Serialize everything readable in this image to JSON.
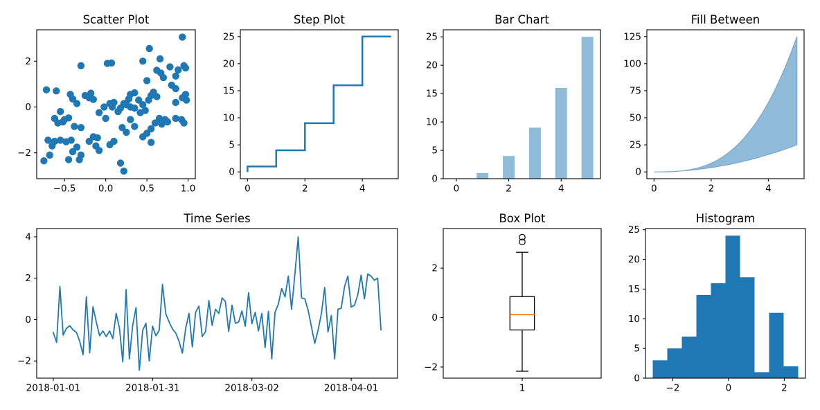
{
  "figure": {
    "background": "#ffffff",
    "text_color": "#000000",
    "spine_color": "#000000"
  },
  "colors": {
    "blue": "#1f77b4",
    "light_blue": "#8fbbd9",
    "area_edge": "#7aa6cc",
    "orange": "#ff7f0e",
    "black": "#000000"
  },
  "chart_data": [
    {
      "type": "scatter",
      "title": "Scatter Plot",
      "color": "#1f77b4",
      "marker_radius": 5.2,
      "xlim": [
        -0.8375,
        1.0875
      ],
      "ylim": [
        -3.13,
        3.37
      ],
      "xticks": {
        "values": [
          -0.5,
          0.0,
          0.5,
          1.0
        ],
        "labels": [
          "−0.5",
          "0.0",
          "0.5",
          "1.0"
        ]
      },
      "yticks": {
        "values": [
          -2,
          0,
          2
        ],
        "labels": [
          "−2",
          "0",
          "2"
        ]
      },
      "points": [
        [
          -0.3,
          1.8
        ],
        [
          0.02,
          1.9
        ],
        [
          0.07,
          1.92
        ],
        [
          0.93,
          3.05
        ],
        [
          0.53,
          2.55
        ],
        [
          0.45,
          2.0
        ],
        [
          0.66,
          2.1
        ],
        [
          0.78,
          1.75
        ],
        [
          0.95,
          1.8
        ],
        [
          0.88,
          1.62
        ],
        [
          0.97,
          1.7
        ],
        [
          0.62,
          1.6
        ],
        [
          0.67,
          1.48
        ],
        [
          0.85,
          1.35
        ],
        [
          0.7,
          1.28
        ],
        [
          0.5,
          1.15
        ],
        [
          0.8,
          0.95
        ],
        [
          -0.72,
          0.75
        ],
        [
          -0.6,
          0.7
        ],
        [
          0.85,
          0.8
        ],
        [
          -0.43,
          0.55
        ],
        [
          -0.25,
          0.5
        ],
        [
          -0.18,
          0.6
        ],
        [
          0.3,
          0.55
        ],
        [
          0.35,
          0.62
        ],
        [
          0.55,
          0.5
        ],
        [
          0.62,
          0.45
        ],
        [
          0.97,
          0.55
        ],
        [
          -0.4,
          0.35
        ],
        [
          -0.2,
          0.4
        ],
        [
          -0.15,
          0.33
        ],
        [
          0.28,
          0.35
        ],
        [
          0.4,
          0.3
        ],
        [
          0.52,
          0.3
        ],
        [
          0.93,
          0.4
        ],
        [
          0.98,
          0.3
        ],
        [
          -0.35,
          0.15
        ],
        [
          0.05,
          0.15
        ],
        [
          0.1,
          0.2
        ],
        [
          0.22,
          0.15
        ],
        [
          0.25,
          0.1
        ],
        [
          0.45,
          0.1
        ],
        [
          0.85,
          0.2
        ],
        [
          -0.02,
          0.0
        ],
        [
          0.08,
          0.0
        ],
        [
          0.18,
          -0.05
        ],
        [
          0.3,
          0.0
        ],
        [
          0.35,
          -0.05
        ],
        [
          -0.55,
          -0.2
        ],
        [
          -0.08,
          -0.25
        ],
        [
          0.15,
          -0.2
        ],
        [
          0.42,
          -0.25
        ],
        [
          0.48,
          -0.15
        ],
        [
          -0.62,
          -0.5
        ],
        [
          -0.5,
          -0.55
        ],
        [
          -0.45,
          -0.48
        ],
        [
          0.0,
          -0.5
        ],
        [
          0.3,
          -0.55
        ],
        [
          0.65,
          -0.5
        ],
        [
          0.72,
          -0.55
        ],
        [
          0.85,
          -0.5
        ],
        [
          0.92,
          -0.55
        ],
        [
          -0.58,
          -0.7
        ],
        [
          -0.52,
          -0.65
        ],
        [
          0.6,
          -0.7
        ],
        [
          0.68,
          -0.75
        ],
        [
          0.75,
          -0.65
        ],
        [
          0.95,
          -0.7
        ],
        [
          -0.38,
          -0.85
        ],
        [
          -0.3,
          -0.9
        ],
        [
          0.2,
          -0.9
        ],
        [
          0.55,
          -0.95
        ],
        [
          0.35,
          -0.85
        ],
        [
          0.25,
          -1.1
        ],
        [
          0.5,
          -1.15
        ],
        [
          -0.15,
          -1.3
        ],
        [
          -0.1,
          -1.35
        ],
        [
          0.45,
          -1.3
        ],
        [
          -0.7,
          -1.45
        ],
        [
          -0.62,
          -1.5
        ],
        [
          -0.55,
          -1.45
        ],
        [
          -0.48,
          -1.52
        ],
        [
          -0.42,
          -1.45
        ],
        [
          -0.2,
          -1.5
        ],
        [
          0.1,
          -1.5
        ],
        [
          0.55,
          -1.55
        ],
        [
          -0.65,
          -1.7
        ],
        [
          -0.35,
          -1.75
        ],
        [
          -0.12,
          -1.7
        ],
        [
          0.05,
          -1.65
        ],
        [
          -0.4,
          -1.95
        ],
        [
          -0.08,
          -1.9
        ],
        [
          -0.68,
          -2.1
        ],
        [
          -0.3,
          -2.1
        ],
        [
          -0.75,
          -2.35
        ],
        [
          -0.45,
          -2.3
        ],
        [
          -0.32,
          -2.3
        ],
        [
          0.18,
          -2.45
        ],
        [
          0.22,
          -2.8
        ],
        [
          0.58,
          0.65
        ]
      ]
    },
    {
      "type": "step",
      "title": "Step Plot",
      "color": "#1f77b4",
      "line_width": 2.5,
      "step_where": "pre",
      "x": [
        0,
        1,
        2,
        3,
        4,
        5
      ],
      "y": [
        0,
        1,
        4,
        9,
        16,
        25
      ],
      "xlim": [
        -0.25,
        5.25
      ],
      "ylim": [
        -1.25,
        26.25
      ],
      "xticks": {
        "values": [
          0,
          2,
          4
        ],
        "labels": [
          "0",
          "2",
          "4"
        ]
      },
      "yticks": {
        "values": [
          0,
          5,
          10,
          15,
          20,
          25
        ],
        "labels": [
          "0",
          "5",
          "10",
          "15",
          "20",
          "25"
        ]
      }
    },
    {
      "type": "bar",
      "title": "Bar Chart",
      "fill": "#8fbbd9",
      "bar_width": 0.45,
      "x": [
        0,
        1,
        2,
        3,
        4,
        5
      ],
      "values": [
        0,
        1,
        4,
        9,
        16,
        25
      ],
      "xlim": [
        -0.5,
        5.5
      ],
      "ylim": [
        0,
        26.25
      ],
      "xticks": {
        "values": [
          0,
          2,
          4
        ],
        "labels": [
          "0",
          "2",
          "4"
        ]
      },
      "yticks": {
        "values": [
          0,
          5,
          10,
          15,
          20,
          25
        ],
        "labels": [
          "0",
          "5",
          "10",
          "15",
          "20",
          "25"
        ]
      }
    },
    {
      "type": "area",
      "title": "Fill Between",
      "fill": "#8fbbd9",
      "edge": "#7aa6cc",
      "x": [
        0,
        0.2,
        0.4,
        0.6,
        0.8,
        1.0,
        1.2,
        1.4,
        1.6,
        1.8,
        2.0,
        2.2,
        2.4,
        2.6,
        2.8,
        3.0,
        3.2,
        3.4,
        3.6,
        3.8,
        4.0,
        4.2,
        4.4,
        4.6,
        4.8,
        5.0
      ],
      "y_lower": [
        0,
        0.04,
        0.16,
        0.36,
        0.64,
        1.0,
        1.44,
        1.96,
        2.56,
        3.24,
        4.0,
        4.84,
        5.76,
        6.76,
        7.84,
        9.0,
        10.24,
        11.56,
        12.96,
        14.44,
        16.0,
        17.64,
        19.36,
        21.16,
        23.04,
        25.0
      ],
      "y_upper": [
        0,
        0.008,
        0.064,
        0.216,
        0.512,
        1.0,
        1.728,
        2.744,
        4.096,
        5.832,
        8.0,
        10.648,
        13.824,
        17.576,
        21.952,
        27.0,
        32.768,
        39.304,
        46.656,
        54.872,
        64.0,
        74.088,
        85.184,
        97.336,
        110.592,
        125.0
      ],
      "xlim": [
        -0.25,
        5.25
      ],
      "ylim": [
        -6.25,
        131.25
      ],
      "xticks": {
        "values": [
          0,
          2,
          4
        ],
        "labels": [
          "0",
          "2",
          "4"
        ]
      },
      "yticks": {
        "values": [
          0,
          25,
          50,
          75,
          100,
          125
        ],
        "labels": [
          "0",
          "25",
          "50",
          "75",
          "100",
          "125"
        ]
      }
    },
    {
      "type": "line",
      "title": "Time Series",
      "color": "#1f77b4",
      "line_width": 1.8,
      "xlim": [
        -5,
        104
      ],
      "ylim": [
        -2.83,
        4.4
      ],
      "xticks": {
        "values": [
          0,
          30,
          60,
          90
        ],
        "labels": [
          "2018-01-01",
          "2018-01-31",
          "2018-03-02",
          "2018-04-01"
        ]
      },
      "yticks": {
        "values": [
          -2,
          0,
          2,
          4
        ],
        "labels": [
          "−2",
          "0",
          "2",
          "4"
        ]
      },
      "values": [
        -0.62,
        -1.1,
        1.6,
        -0.75,
        -0.42,
        -0.3,
        -0.5,
        -0.62,
        -1.05,
        -1.7,
        1.1,
        -1.6,
        0.62,
        -0.12,
        -0.78,
        -0.55,
        -0.82,
        -0.55,
        -0.92,
        0.3,
        -0.42,
        -2.05,
        1.45,
        -1.9,
        -0.28,
        0.58,
        -2.45,
        -0.52,
        -0.18,
        -2.0,
        -0.32,
        -0.78,
        -0.52,
        1.7,
        0.28,
        -0.12,
        -0.45,
        -0.65,
        -1.05,
        -1.62,
        -0.42,
        0.3,
        -1.32,
        0.35,
        0.65,
        -0.82,
        -0.58,
        0.92,
        -0.28,
        0.5,
        0.3,
        1.05,
        0.88,
        -0.58,
        0.7,
        -0.18,
        -0.12,
        0.42,
        -0.32,
        1.3,
        -0.2,
        0.35,
        -0.55,
        0.3,
        -1.35,
        0.4,
        -1.9,
        0.35,
        0.75,
        1.5,
        1.1,
        2.1,
        0.5,
        2.2,
        4.0,
        1.05,
        1.0,
        0.45,
        -0.35,
        -1.15,
        -0.5,
        0.3,
        1.55,
        -0.6,
        0.2,
        -1.9,
        0.5,
        0.55,
        1.6,
        2.1,
        0.6,
        0.7,
        1.2,
        2.15,
        1.0,
        2.2,
        2.1,
        1.9,
        2.0,
        -0.5
      ]
    },
    {
      "type": "box",
      "title": "Box Plot",
      "box_color": "#000000",
      "median_color": "#ff7f0e",
      "position": 1,
      "box_width": 0.155,
      "cap_width": 0.078,
      "q1": -0.5,
      "median": 0.12,
      "q3": 0.85,
      "whisker_low": -2.17,
      "whisker_high": 2.64,
      "fliers": [
        3.06,
        3.25
      ],
      "xlim": [
        0.5,
        1.5
      ],
      "ylim": [
        -2.45,
        3.6
      ],
      "xticks": {
        "values": [
          1
        ],
        "labels": [
          "1"
        ]
      },
      "yticks": {
        "values": [
          -2,
          0,
          2
        ],
        "labels": [
          "−2",
          "0",
          "2"
        ]
      }
    },
    {
      "type": "histogram",
      "title": "Histogram",
      "fill": "#1f77b4",
      "bin_start": -2.72,
      "bin_width": 0.522,
      "counts": [
        3,
        5,
        7,
        14,
        16,
        24,
        17,
        1,
        11,
        2
      ],
      "xlim": [
        -2.98,
        2.76
      ],
      "ylim": [
        0,
        25.2
      ],
      "xticks": {
        "values": [
          -2,
          0,
          2
        ],
        "labels": [
          "−2",
          "0",
          "2"
        ]
      },
      "yticks": {
        "values": [
          0,
          5,
          10,
          15,
          20,
          25
        ],
        "labels": [
          "0",
          "5",
          "10",
          "15",
          "20",
          "25"
        ]
      }
    }
  ]
}
